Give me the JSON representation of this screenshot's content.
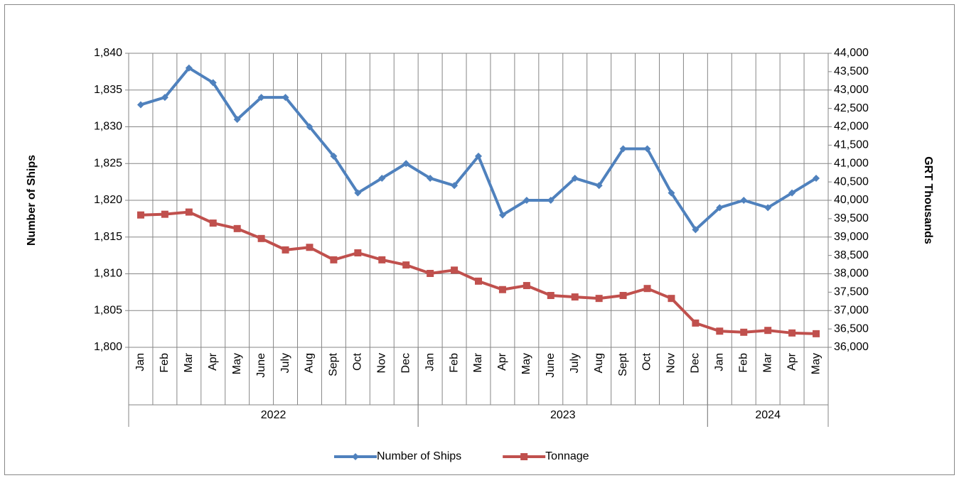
{
  "chart_data": {
    "type": "line",
    "y_axis_label": "Number of Ships",
    "y2_axis_label": "GRT Thousands",
    "groups": [
      {
        "label": "2022",
        "categories": [
          "Jan",
          "Feb",
          "Mar",
          "Apr",
          "May",
          "June",
          "July",
          "Aug",
          "Sept",
          "Oct",
          "Nov",
          "Dec"
        ]
      },
      {
        "label": "2023",
        "categories": [
          "Jan",
          "Feb",
          "Mar",
          "Apr",
          "May",
          "June",
          "July",
          "Aug",
          "Sept",
          "Oct",
          "Nov",
          "Dec"
        ]
      },
      {
        "label": "2024",
        "categories": [
          "Jan",
          "Feb",
          "Mar",
          "Apr",
          "May"
        ]
      }
    ],
    "series": [
      {
        "name": "Number of Ships",
        "color": "#4f81bd",
        "marker": "diamond",
        "axis": "y",
        "values": [
          1833,
          1834,
          1838,
          1836,
          1831,
          1834,
          1834,
          1830,
          1826,
          1821,
          1823,
          1825,
          1823,
          1822,
          1826,
          1818,
          1820,
          1820,
          1823,
          1822,
          1827,
          1827,
          1821,
          1816,
          1819,
          1820,
          1819,
          1821,
          1823
        ]
      },
      {
        "name": "Tonnage",
        "color": "#c0504d",
        "marker": "square",
        "axis": "y2",
        "values": [
          39600,
          39620,
          39680,
          39380,
          39230,
          38960,
          38650,
          38720,
          38380,
          38570,
          38380,
          38240,
          38010,
          38100,
          37800,
          37570,
          37680,
          37410,
          37370,
          37330,
          37410,
          37600,
          37330,
          36660,
          36440,
          36410,
          36460,
          36390,
          36370
        ]
      }
    ],
    "ylim": [
      1800,
      1840
    ],
    "yticks": [
      {
        "value": 1800,
        "label": "1,800"
      },
      {
        "value": 1805,
        "label": "1,805"
      },
      {
        "value": 1810,
        "label": "1,810"
      },
      {
        "value": 1815,
        "label": "1,815"
      },
      {
        "value": 1820,
        "label": "1,820"
      },
      {
        "value": 1825,
        "label": "1,825"
      },
      {
        "value": 1830,
        "label": "1,830"
      },
      {
        "value": 1835,
        "label": "1,835"
      },
      {
        "value": 1840,
        "label": "1,840"
      }
    ],
    "y2lim": [
      36000,
      44000
    ],
    "y2ticks": [
      {
        "value": 36000,
        "label": "36,000"
      },
      {
        "value": 36500,
        "label": "36,500"
      },
      {
        "value": 37000,
        "label": "37,000"
      },
      {
        "value": 37500,
        "label": "37,500"
      },
      {
        "value": 38000,
        "label": "38,000"
      },
      {
        "value": 38500,
        "label": "38,500"
      },
      {
        "value": 39000,
        "label": "39,000"
      },
      {
        "value": 39500,
        "label": "39,500"
      },
      {
        "value": 40000,
        "label": "40,000"
      },
      {
        "value": 40500,
        "label": "40,500"
      },
      {
        "value": 41000,
        "label": "41,000"
      },
      {
        "value": 41500,
        "label": "41,500"
      },
      {
        "value": 42000,
        "label": "42,000"
      },
      {
        "value": 42500,
        "label": "42,500"
      },
      {
        "value": 43000,
        "label": "43,000"
      },
      {
        "value": 43500,
        "label": "43,500"
      },
      {
        "value": 44000,
        "label": "44,000"
      }
    ],
    "grid": true,
    "legend": "bottom"
  }
}
